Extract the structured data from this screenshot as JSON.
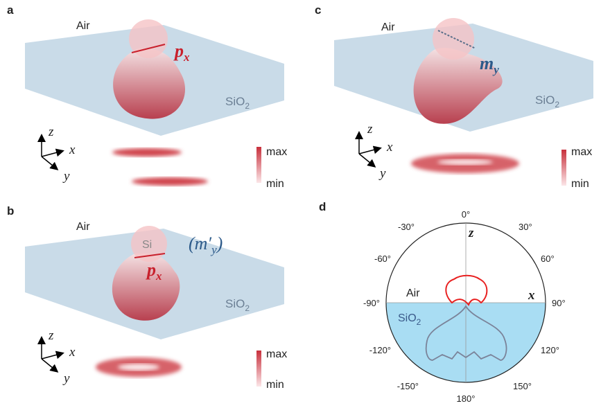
{
  "panel_a": {
    "label": "a",
    "air": "Air",
    "substrate": "SiO",
    "substrate_sub": "2",
    "dipole": "p",
    "dipole_sub": "x",
    "axes": [
      "z",
      "x",
      "y"
    ],
    "colorbar": [
      "max",
      "min"
    ]
  },
  "panel_b": {
    "label": "b",
    "air": "Air",
    "particle": "Si",
    "substrate": "SiO",
    "substrate_sub": "2",
    "dipole": "p",
    "dipole_sub": "x",
    "dual_dipole": "(m′",
    "dual_dipole_sub": "y",
    "dual_dipole_close": ")",
    "axes": [
      "z",
      "x",
      "y"
    ],
    "colorbar": [
      "max",
      "min"
    ]
  },
  "panel_c": {
    "label": "c",
    "air": "Air",
    "substrate": "SiO",
    "substrate_sub": "2",
    "dipole": "m",
    "dipole_sub": "y",
    "axes": [
      "z",
      "x",
      "y"
    ],
    "colorbar": [
      "max",
      "min"
    ]
  },
  "panel_d": {
    "label": "d",
    "angle_labels": [
      "0°",
      "30°",
      "60°",
      "90°",
      "120°",
      "150°",
      "180°",
      "-150°",
      "-120°",
      "-90°",
      "-60°",
      "-30°"
    ],
    "axis_z": "z",
    "axis_x": "x",
    "air": "Air",
    "substrate": "SiO",
    "substrate_sub": "2"
  }
}
